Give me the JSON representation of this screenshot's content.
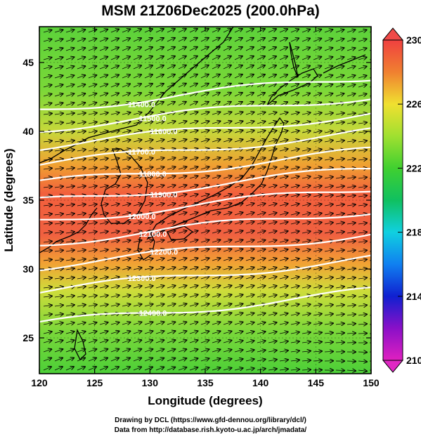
{
  "title": "MSM 21Z06Dec2025 (200.0hPa)",
  "xlabel": "Longitude (degrees)",
  "ylabel": "Latitude  (degrees)",
  "footer": {
    "line1": "Drawing by DCL (https://www.gfd-dennou.org/library/dcl/)",
    "line2": "Data from http://database.rish.kyoto-u.ac.jp/arch/jmadata/"
  },
  "chart_data": {
    "type": "heatmap",
    "x_range": [
      120,
      150
    ],
    "y_range": [
      22.4,
      47.6
    ],
    "x_ticks": [
      "120",
      "125",
      "130",
      "135",
      "140",
      "145",
      "150"
    ],
    "y_ticks": [
      "25",
      "30",
      "35",
      "40",
      "45"
    ],
    "colorbar": {
      "range": [
        210,
        230
      ],
      "ticks": [
        "210",
        "214",
        "218",
        "222",
        "226",
        "230"
      ]
    },
    "contours": [
      {
        "label": "11400.0",
        "lat": 41.6
      },
      {
        "label": "11500.0",
        "lat": 40.2
      },
      {
        "label": "11600.0",
        "lat": 38.9
      },
      {
        "label": "11700.0",
        "lat": 37.6
      },
      {
        "label": "11800.0",
        "lat": 36.2
      },
      {
        "label": "11900.0",
        "lat": 34.9
      },
      {
        "label": "12000.0",
        "lat": 33.5
      },
      {
        "label": "12100.0",
        "lat": 31.9
      },
      {
        "label": "12200.0",
        "lat": 30.2
      },
      {
        "label": "12300.0",
        "lat": 28.4
      },
      {
        "label": "12400.0",
        "lat": 26.0
      }
    ],
    "grid": true
  }
}
